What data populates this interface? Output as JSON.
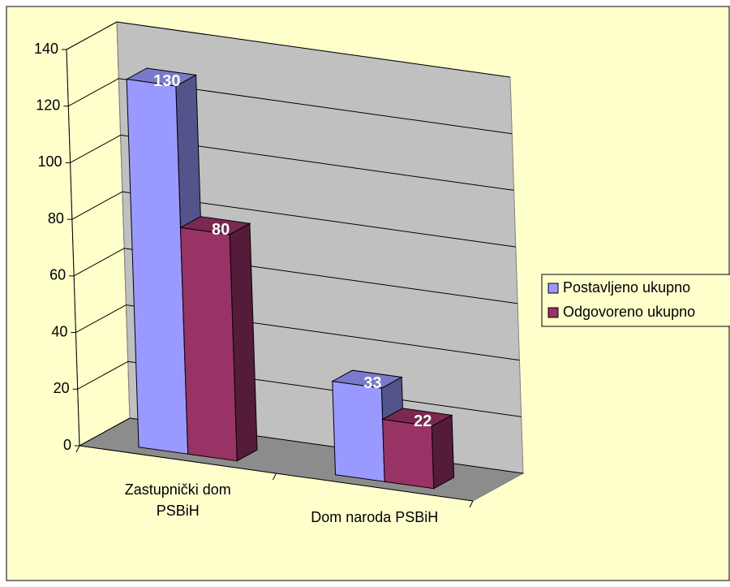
{
  "chart_data": {
    "type": "bar3d",
    "categories": [
      "Zastupnički dom PSBiH",
      "Dom naroda PSBiH"
    ],
    "series": [
      {
        "name": "Postavljeno ukupno",
        "color": "#9999ff",
        "values": [
          130,
          33
        ]
      },
      {
        "name": "Odgovoreno ukupno",
        "color": "#993366",
        "values": [
          80,
          22
        ]
      }
    ],
    "ylim": [
      0,
      140
    ],
    "yticks": [
      0,
      20,
      40,
      60,
      80,
      100,
      120,
      140
    ],
    "grid": true,
    "legend": "right"
  }
}
